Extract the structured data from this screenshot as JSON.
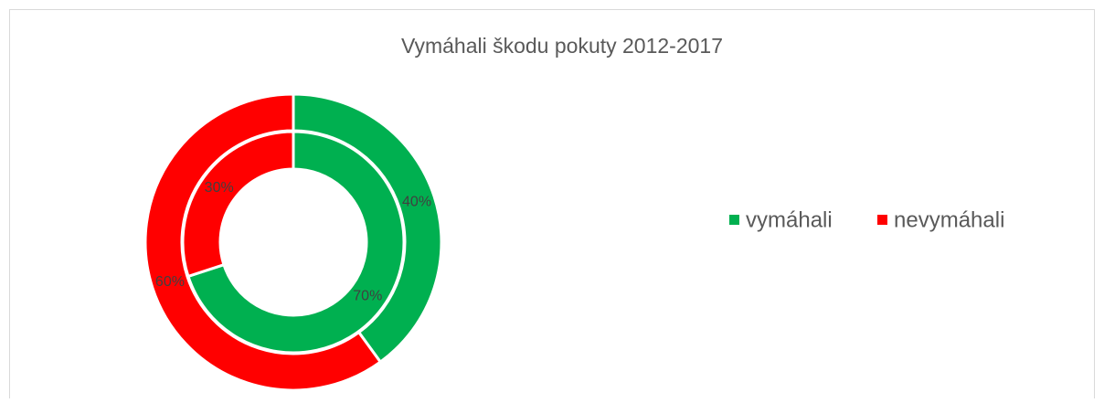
{
  "chart_data": {
    "type": "doughnut",
    "title": "Vymáhali škodu pokuty 2012-2017",
    "categories": [
      "vymáhali",
      "nevymáhali"
    ],
    "colors": [
      "#00b050",
      "#ff0000"
    ],
    "series": [
      {
        "values": [
          40,
          60
        ],
        "value_labels": [
          "40%",
          "60%"
        ]
      },
      {
        "values": [
          70,
          30
        ],
        "value_labels": [
          "70%",
          "30%"
        ]
      }
    ],
    "legend": "right"
  }
}
